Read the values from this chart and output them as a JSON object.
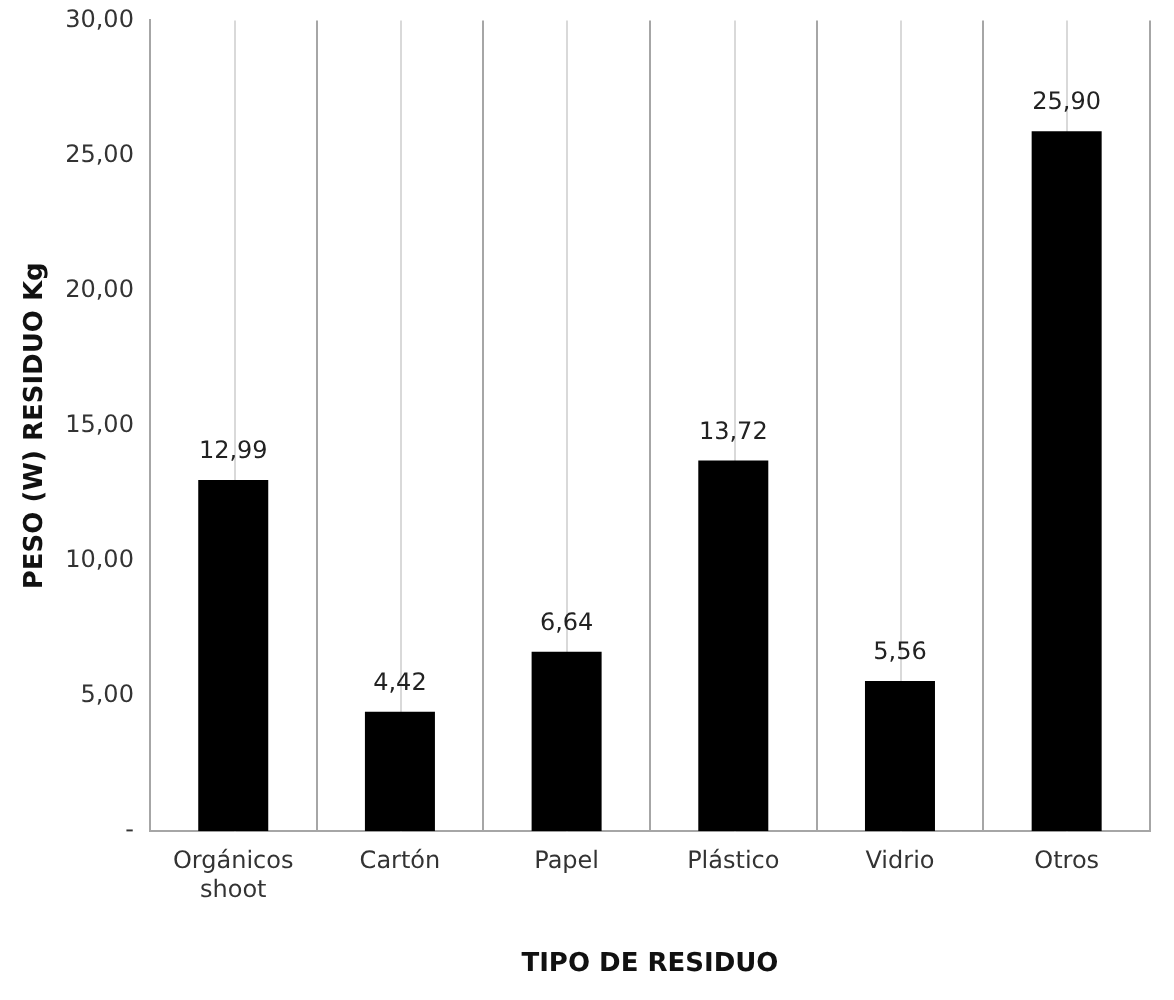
{
  "chart_data": {
    "type": "bar",
    "xlabel": "TIPO DE RESIDUO",
    "ylabel": "PESO (W) RESIDUO Kg",
    "categories": [
      "Orgánicos shoot",
      "Cartón",
      "Papel",
      "Plástico",
      "Vidrio",
      "Otros"
    ],
    "values": [
      12.99,
      4.42,
      6.64,
      13.72,
      5.56,
      25.9
    ],
    "color": "#000000",
    "ylim": [
      0,
      30
    ],
    "yticks": [
      {
        "value": 0,
        "label": "-"
      },
      {
        "value": 5,
        "label": "5,00"
      },
      {
        "value": 10,
        "label": "10,00"
      },
      {
        "value": 15,
        "label": "15,00"
      },
      {
        "value": 20,
        "label": "20,00"
      },
      {
        "value": 25,
        "label": "25,00"
      },
      {
        "value": 30,
        "label": "30,00"
      }
    ],
    "value_labels": [
      "12,99",
      "4,42",
      "6,64",
      "13,72",
      "5,56",
      "25,90"
    ],
    "grid": "x",
    "legend": false
  }
}
